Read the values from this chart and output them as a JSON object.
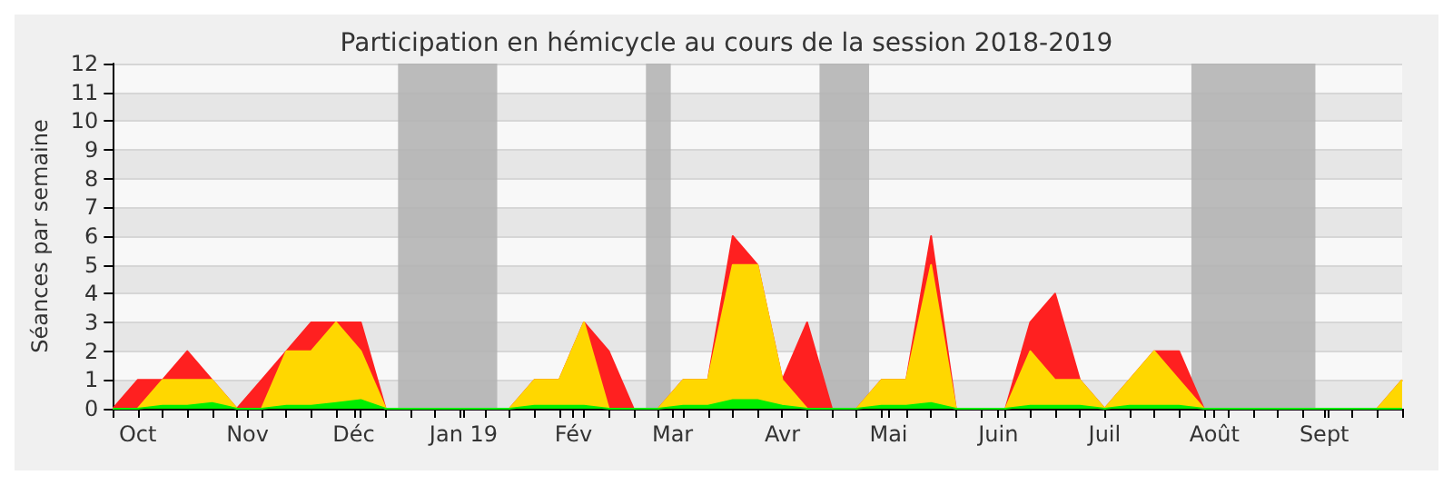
{
  "chart_data": {
    "type": "area",
    "title": "Participation en hémicycle au cours de la session 2018-2019",
    "ylabel": "Séances par semaine",
    "stacked": true,
    "grid": "y",
    "marker": "none",
    "line_style": "solid",
    "x": [
      "2018-09-24",
      "2018-10-01",
      "2018-10-08",
      "2018-10-15",
      "2018-10-22",
      "2018-10-29",
      "2018-11-05",
      "2018-11-12",
      "2018-11-19",
      "2018-11-26",
      "2018-12-03",
      "2018-12-10",
      "2018-12-17",
      "2018-12-24",
      "2018-12-31",
      "2019-01-07",
      "2019-01-14",
      "2019-01-21",
      "2019-01-28",
      "2019-02-04",
      "2019-02-11",
      "2019-02-18",
      "2019-02-25",
      "2019-03-04",
      "2019-03-11",
      "2019-03-18",
      "2019-03-25",
      "2019-04-01",
      "2019-04-08",
      "2019-04-15",
      "2019-04-22",
      "2019-04-29",
      "2019-05-06",
      "2019-05-13",
      "2019-05-20",
      "2019-05-27",
      "2019-06-03",
      "2019-06-10",
      "2019-06-17",
      "2019-06-24",
      "2019-07-01",
      "2019-07-08",
      "2019-07-15",
      "2019-07-22",
      "2019-07-29",
      "2019-08-05",
      "2019-08-12",
      "2019-08-19",
      "2019-08-26",
      "2019-09-02",
      "2019-09-09",
      "2019-09-16",
      "2019-09-23"
    ],
    "series": [
      {
        "color": "#00ee00",
        "values": [
          0,
          0,
          0.1,
          0.1,
          0.2,
          0,
          0,
          0.1,
          0.1,
          0.2,
          0.3,
          0,
          0,
          0,
          0,
          0,
          0,
          0.1,
          0.1,
          0.1,
          0,
          0,
          0,
          0.1,
          0.1,
          0.3,
          0.3,
          0.1,
          0,
          0,
          0,
          0.1,
          0.1,
          0.2,
          0,
          0,
          0,
          0.1,
          0.1,
          0.1,
          0,
          0.1,
          0.1,
          0.1,
          0,
          0,
          0,
          0,
          0,
          0,
          0,
          0,
          0
        ]
      },
      {
        "color": "#ffd700",
        "values": [
          0,
          0,
          0.9,
          0.9,
          0.8,
          0,
          0,
          1.9,
          1.9,
          2.8,
          1.7,
          0,
          0,
          0,
          0,
          0,
          0,
          0.9,
          0.9,
          2.9,
          0,
          0,
          0,
          0.9,
          0.9,
          4.7,
          4.7,
          0.9,
          0,
          0,
          0,
          0.9,
          0.9,
          4.8,
          0,
          0,
          0,
          1.9,
          0.9,
          0.9,
          0,
          0.9,
          1.9,
          0.9,
          0,
          0,
          0,
          0,
          0,
          0,
          0,
          0,
          1
        ]
      },
      {
        "color": "#ff2020",
        "values": [
          0,
          1,
          0,
          1,
          0,
          0,
          1,
          0,
          1,
          0,
          1,
          0,
          0,
          0,
          0,
          0,
          0,
          0,
          0,
          0,
          2,
          0,
          0,
          0,
          0,
          1,
          0,
          0,
          3,
          0,
          0,
          0,
          0,
          1,
          0,
          0,
          0,
          1,
          3,
          0,
          0,
          0,
          0,
          1,
          0,
          0,
          0,
          0,
          0,
          0,
          0,
          0,
          0
        ]
      }
    ],
    "xlim": [
      "2018-09-24",
      "2019-09-23"
    ],
    "xticks": [
      {
        "value": "2018-09-24",
        "label": null
      },
      {
        "value": "2018-10-01",
        "label": "Oct"
      },
      {
        "value": "2018-10-08",
        "label": null
      },
      {
        "value": "2018-10-15",
        "label": null
      },
      {
        "value": "2018-10-22",
        "label": null
      },
      {
        "value": "2018-10-29",
        "label": null
      },
      {
        "value": "2018-11-01",
        "label": "Nov"
      },
      {
        "value": "2018-11-05",
        "label": null
      },
      {
        "value": "2018-11-12",
        "label": null
      },
      {
        "value": "2018-11-19",
        "label": null
      },
      {
        "value": "2018-11-26",
        "label": null
      },
      {
        "value": "2018-12-01",
        "label": "Déc"
      },
      {
        "value": "2018-12-03",
        "label": null
      },
      {
        "value": "2018-12-10",
        "label": null
      },
      {
        "value": "2018-12-17",
        "label": null
      },
      {
        "value": "2018-12-24",
        "label": null
      },
      {
        "value": "2018-12-31",
        "label": null
      },
      {
        "value": "2019-01-01",
        "label": "Jan 19"
      },
      {
        "value": "2019-01-07",
        "label": null
      },
      {
        "value": "2019-01-14",
        "label": null
      },
      {
        "value": "2019-01-21",
        "label": null
      },
      {
        "value": "2019-01-28",
        "label": null
      },
      {
        "value": "2019-02-01",
        "label": "Fév"
      },
      {
        "value": "2019-02-04",
        "label": null
      },
      {
        "value": "2019-02-11",
        "label": null
      },
      {
        "value": "2019-02-18",
        "label": null
      },
      {
        "value": "2019-02-25",
        "label": null
      },
      {
        "value": "2019-03-01",
        "label": "Mar"
      },
      {
        "value": "2019-03-04",
        "label": null
      },
      {
        "value": "2019-03-11",
        "label": null
      },
      {
        "value": "2019-03-18",
        "label": null
      },
      {
        "value": "2019-03-25",
        "label": null
      },
      {
        "value": "2019-04-01",
        "label": "Avr"
      },
      {
        "value": "2019-04-08",
        "label": null
      },
      {
        "value": "2019-04-15",
        "label": null
      },
      {
        "value": "2019-04-22",
        "label": null
      },
      {
        "value": "2019-04-29",
        "label": null
      },
      {
        "value": "2019-05-01",
        "label": "Mai"
      },
      {
        "value": "2019-05-06",
        "label": null
      },
      {
        "value": "2019-05-13",
        "label": null
      },
      {
        "value": "2019-05-20",
        "label": null
      },
      {
        "value": "2019-05-27",
        "label": null
      },
      {
        "value": "2019-06-01",
        "label": "Juin"
      },
      {
        "value": "2019-06-03",
        "label": null
      },
      {
        "value": "2019-06-10",
        "label": null
      },
      {
        "value": "2019-06-17",
        "label": null
      },
      {
        "value": "2019-06-24",
        "label": null
      },
      {
        "value": "2019-07-01",
        "label": "Juil"
      },
      {
        "value": "2019-07-08",
        "label": null
      },
      {
        "value": "2019-07-15",
        "label": null
      },
      {
        "value": "2019-07-22",
        "label": null
      },
      {
        "value": "2019-07-29",
        "label": null
      },
      {
        "value": "2019-08-01",
        "label": "Août"
      },
      {
        "value": "2019-08-05",
        "label": null
      },
      {
        "value": "2019-08-12",
        "label": null
      },
      {
        "value": "2019-08-19",
        "label": null
      },
      {
        "value": "2019-08-26",
        "label": null
      },
      {
        "value": "2019-09-01",
        "label": "Sept"
      },
      {
        "value": "2019-09-02",
        "label": null
      },
      {
        "value": "2019-09-09",
        "label": null
      },
      {
        "value": "2019-09-16",
        "label": null
      },
      {
        "value": "2019-09-23",
        "label": null
      }
    ],
    "ylim": [
      0,
      12
    ],
    "yticks": [
      0,
      1,
      2,
      3,
      4,
      5,
      6,
      7,
      8,
      9,
      10,
      11,
      12
    ],
    "bands": [
      {
        "axis": "x",
        "from": "2018-12-13T12:00",
        "to": "2019-01-10T12:00",
        "color": "#b4b4b4"
      },
      {
        "axis": "x",
        "from": "2019-02-21T12:00",
        "to": "2019-02-28T12:00",
        "color": "#b4b4b4"
      },
      {
        "axis": "x",
        "from": "2019-04-11T12:00",
        "to": "2019-04-25T12:00",
        "color": "#b4b4b4"
      },
      {
        "axis": "x",
        "from": "2019-07-25T12:00",
        "to": "2019-08-29T12:00",
        "color": "#b4b4b4"
      }
    ]
  }
}
